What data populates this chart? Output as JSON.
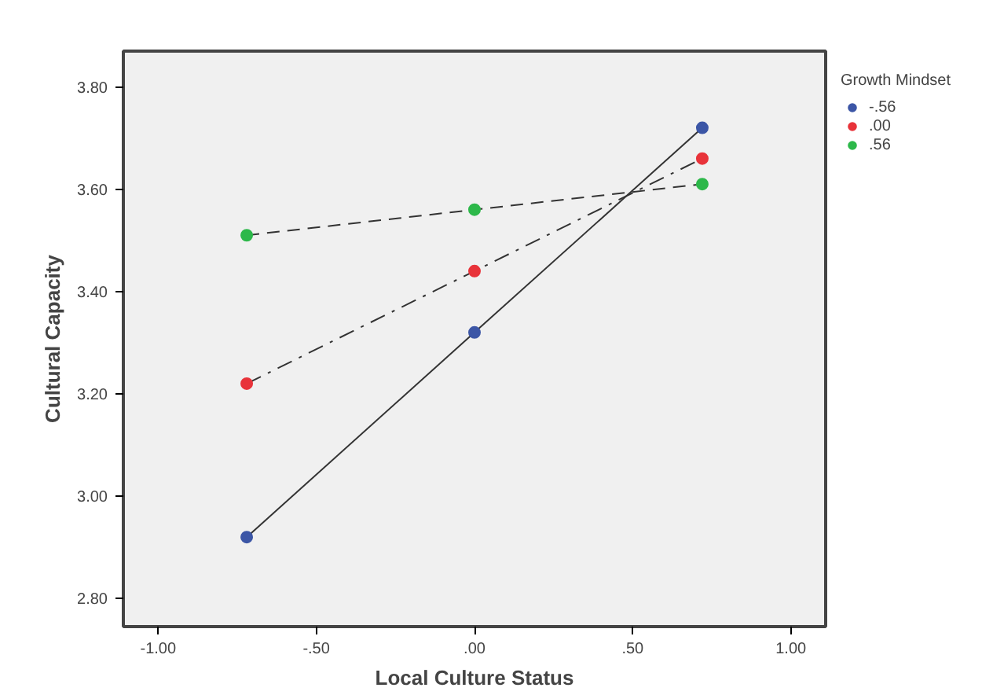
{
  "chart_data": {
    "type": "line",
    "xlabel": "Local Culture Status",
    "ylabel": "Cultural Capacity",
    "legend_title": "Growth Mindset",
    "x": [
      -0.72,
      0,
      0.72
    ],
    "series": [
      {
        "name": "-.56",
        "color": "#3c56a6",
        "values": [
          2.92,
          3.32,
          3.72
        ],
        "line_style": "solid"
      },
      {
        "name": ".00",
        "color": "#e8333a",
        "values": [
          3.22,
          3.44,
          3.66
        ],
        "line_style": "dashdot"
      },
      {
        "name": ".56",
        "color": "#2db84a",
        "values": [
          3.51,
          3.56,
          3.61
        ],
        "line_style": "dashed"
      }
    ],
    "xlim": [
      -1.11,
      1.11
    ],
    "ylim": [
      2.745,
      3.87
    ],
    "xticks": [
      {
        "value": -1,
        "label": "-1.00"
      },
      {
        "value": -0.5,
        "label": "-.50"
      },
      {
        "value": 0,
        "label": ".00"
      },
      {
        "value": 0.5,
        "label": ".50"
      },
      {
        "value": 1,
        "label": "1.00"
      }
    ],
    "yticks": [
      {
        "value": 2.8,
        "label": "2.80"
      },
      {
        "value": 3.0,
        "label": "3.00"
      },
      {
        "value": 3.2,
        "label": "3.20"
      },
      {
        "value": 3.4,
        "label": "3.40"
      },
      {
        "value": 3.6,
        "label": "3.60"
      },
      {
        "value": 3.8,
        "label": "3.80"
      }
    ],
    "marker": "circle",
    "legend": "right",
    "grid": false
  }
}
